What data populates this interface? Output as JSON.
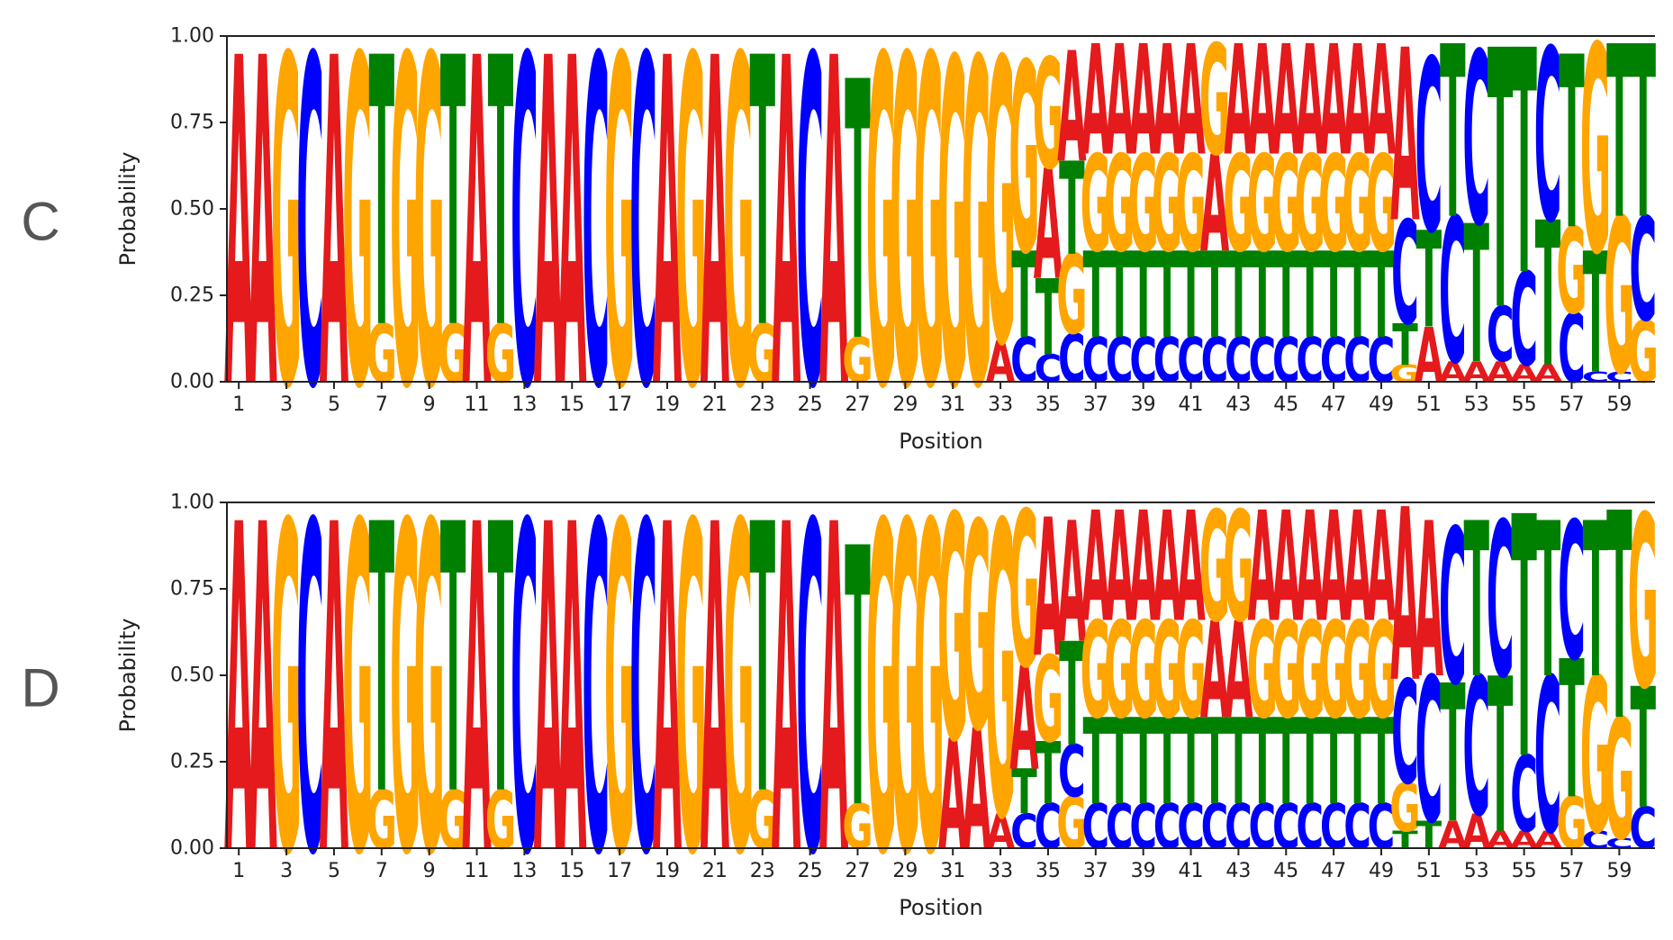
{
  "colors": {
    "A": "#e41a1c",
    "C": "#0000ff",
    "G": "#ffa500",
    "T": "#008000"
  },
  "chart_data": [
    {
      "type": "sequence-logo",
      "panel_label": "C",
      "xlabel": "Position",
      "ylabel": "Probability",
      "ylim": [
        0,
        1
      ],
      "yticks": [
        "0.00",
        "0.25",
        "0.50",
        "0.75",
        "1.00"
      ],
      "xticks": [
        1,
        3,
        5,
        7,
        9,
        11,
        13,
        15,
        17,
        19,
        21,
        23,
        25,
        27,
        29,
        31,
        33,
        35,
        37,
        39,
        41,
        43,
        45,
        47,
        49,
        51,
        53,
        55,
        57,
        59
      ],
      "n_positions": 60,
      "positions": [
        "A:0.95",
        "A:0.95",
        "G:0.95",
        "C:0.95",
        "A:0.95",
        "G:0.95",
        "T:0.78|G:0.17",
        "G:0.95",
        "G:0.95",
        "T:0.78|G:0.17",
        "A:0.95",
        "T:0.78|G:0.17",
        "C:0.95",
        "A:0.95",
        "A:0.95",
        "C:0.95",
        "G:0.95",
        "C:0.95",
        "A:0.95",
        "G:0.95",
        "A:0.95",
        "G:0.95",
        "T:0.78|G:0.17",
        "A:0.95",
        "C:0.95",
        "A:0.95",
        "T:0.75|G:0.13",
        "G:0.95",
        "G:0.95",
        "G:0.95",
        "G:0.94",
        "G:0.94",
        "G:0.82|A:0.12",
        "G:0.55|T:0.25|C:0.13",
        "A:0.32|T:0.22|G:0.32|C:0.08",
        "A:0.32|T:0.27|G:0.23|C:0.14",
        "A:0.32|G:0.28|T:0.25|C:0.13",
        "A:0.32|G:0.28|T:0.25|C:0.13",
        "A:0.32|G:0.28|T:0.25|C:0.13",
        "A:0.32|G:0.28|T:0.25|C:0.13",
        "A:0.32|G:0.28|T:0.25|C:0.13",
        "G:0.32|A:0.28|T:0.25|C:0.13",
        "A:0.32|G:0.28|T:0.25|C:0.13",
        "A:0.32|G:0.28|T:0.25|C:0.13",
        "A:0.32|G:0.28|T:0.25|C:0.13",
        "A:0.32|G:0.28|T:0.25|C:0.13",
        "A:0.32|G:0.28|T:0.25|C:0.13",
        "A:0.32|G:0.28|T:0.25|C:0.13",
        "A:0.32|G:0.28|T:0.25|C:0.13",
        "A:0.50|C:0.30|T:0.12|G:0.05",
        "C:0.50|T:0.28|A:0.16",
        "T:0.50|C:0.42|A:0.06",
        "C:0.50|T:0.40|A:0.06",
        "T:0.75|C:0.16|A:0.06",
        "T:0.65|C:0.27|A:0.05",
        "C:0.50|T:0.42|A:0.05",
        "T:0.50|G:0.25|C:0.20",
        "G:0.60|T:0.35|C:0.03",
        "G:0.45|T:0.50|C:0.03",
        "T:0.50|C:0.30|G:0.18"
      ]
    },
    {
      "type": "sequence-logo",
      "panel_label": "D",
      "xlabel": "Position",
      "ylabel": "Probability",
      "ylim": [
        0,
        1
      ],
      "yticks": [
        "0.00",
        "0.25",
        "0.50",
        "0.75",
        "1.00"
      ],
      "xticks": [
        1,
        3,
        5,
        7,
        9,
        11,
        13,
        15,
        17,
        19,
        21,
        23,
        25,
        27,
        29,
        31,
        33,
        35,
        37,
        39,
        41,
        43,
        45,
        47,
        49,
        51,
        53,
        55,
        57,
        59
      ],
      "n_positions": 60,
      "positions": [
        "A:0.95",
        "A:0.95",
        "G:0.95",
        "C:0.95",
        "A:0.95",
        "G:0.95",
        "T:0.78|G:0.17",
        "G:0.95",
        "G:0.95",
        "T:0.78|G:0.17",
        "A:0.95",
        "T:0.78|G:0.17",
        "C:0.95",
        "A:0.95",
        "A:0.95",
        "C:0.95",
        "G:0.95",
        "C:0.95",
        "A:0.95",
        "G:0.95",
        "A:0.95",
        "G:0.95",
        "T:0.78|G:0.17",
        "A:0.95",
        "C:0.95",
        "A:0.95",
        "T:0.75|G:0.13",
        "G:0.95",
        "G:0.95",
        "G:0.95",
        "G:0.65|A:0.32",
        "G:0.60|A:0.35",
        "G:0.85|A:0.10",
        "G:0.45|A:0.30|T:0.13|C:0.10",
        "A:0.40|G:0.25|T:0.18|C:0.13",
        "A:0.35|T:0.30|G:0.15|C:0.15",
        "A:0.32|G:0.28|T:0.25|C:0.13",
        "A:0.32|G:0.28|T:0.25|C:0.13",
        "A:0.32|G:0.28|T:0.25|C:0.13",
        "A:0.32|G:0.28|T:0.25|C:0.13",
        "A:0.32|G:0.28|T:0.25|C:0.13",
        "G:0.32|A:0.28|T:0.25|C:0.13",
        "G:0.32|A:0.28|T:0.25|C:0.13",
        "A:0.32|G:0.28|T:0.25|C:0.13",
        "A:0.32|G:0.28|T:0.25|C:0.13",
        "A:0.32|G:0.28|T:0.25|C:0.13",
        "A:0.32|G:0.28|T:0.25|C:0.13",
        "A:0.32|G:0.28|T:0.25|C:0.13",
        "A:0.32|G:0.28|T:0.25|C:0.13",
        "A:0.50|C:0.30|G:0.14|T:0.05",
        "A:0.45|C:0.42|T:0.08",
        "C:0.45|T:0.40|A:0.08",
        "T:0.45|C:0.40|A:0.10",
        "T:0.45|C:0.45|A:0.05",
        "T:0.70|C:0.22|A:0.05",
        "C:0.45|T:0.45|A:0.05",
        "T:0.40|C:0.40|G:0.15",
        "G:0.45|T:0.45|C:0.05",
        "G:0.35|T:0.60|C:0.03",
        "G:0.50|T:0.35|C:0.12"
      ]
    }
  ]
}
